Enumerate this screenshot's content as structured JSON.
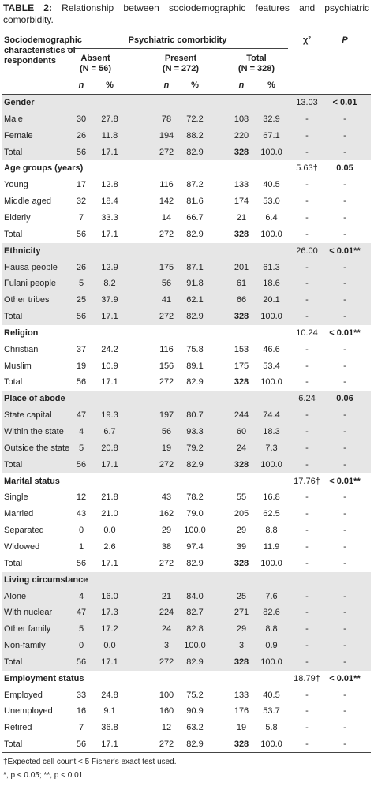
{
  "title": {
    "label": "TABLE 2:",
    "text": "Relationship between sociodemographic features and psychiatric comorbidity."
  },
  "header": {
    "characteristics": "Sociodemographic characteristics of respondents",
    "group": "Psychiatric comorbidity",
    "columns": [
      {
        "name": "Absent",
        "n": "(N = 56)"
      },
      {
        "name": "Present",
        "n": "(N = 272)"
      },
      {
        "name": "Total",
        "n": "(N = 328)"
      }
    ],
    "chi": "χ²",
    "p": "P",
    "sub": [
      "n",
      "%",
      "n",
      "%",
      "n",
      "%"
    ]
  },
  "sections": [
    {
      "title": "Gender",
      "chi": "13.03",
      "p": "< 0.01",
      "rows": [
        [
          "Male",
          "30",
          "27.8",
          "78",
          "72.2",
          "108",
          "32.9",
          "-",
          "-"
        ],
        [
          "Female",
          "26",
          "11.8",
          "194",
          "88.2",
          "220",
          "67.1",
          "-",
          "-"
        ],
        [
          "Total",
          "56",
          "17.1",
          "272",
          "82.9",
          "328",
          "100.0",
          "-",
          "-"
        ]
      ]
    },
    {
      "title": "Age groups (years)",
      "chi": "5.63†",
      "p": "0.05",
      "rows": [
        [
          "Young",
          "17",
          "12.8",
          "116",
          "87.2",
          "133",
          "40.5",
          "-",
          "-"
        ],
        [
          "Middle aged",
          "32",
          "18.4",
          "142",
          "81.6",
          "174",
          "53.0",
          "-",
          "-"
        ],
        [
          "Elderly",
          "7",
          "33.3",
          "14",
          "66.7",
          "21",
          "6.4",
          "-",
          "-"
        ],
        [
          "Total",
          "56",
          "17.1",
          "272",
          "82.9",
          "328",
          "100.0",
          "-",
          "-"
        ]
      ]
    },
    {
      "title": "Ethnicity",
      "chi": "26.00",
      "p": "< 0.01**",
      "rows": [
        [
          "Hausa people",
          "26",
          "12.9",
          "175",
          "87.1",
          "201",
          "61.3",
          "-",
          "-"
        ],
        [
          "Fulani people",
          "5",
          "8.2",
          "56",
          "91.8",
          "61",
          "18.6",
          "-",
          "-"
        ],
        [
          "Other tribes",
          "25",
          "37.9",
          "41",
          "62.1",
          "66",
          "20.1",
          "-",
          "-"
        ],
        [
          "Total",
          "56",
          "17.1",
          "272",
          "82.9",
          "328",
          "100.0",
          "-",
          "-"
        ]
      ]
    },
    {
      "title": "Religion",
      "chi": "10.24",
      "p": "< 0.01**",
      "rows": [
        [
          "Christian",
          "37",
          "24.2",
          "116",
          "75.8",
          "153",
          "46.6",
          "-",
          "-"
        ],
        [
          "Muslim",
          "19",
          "10.9",
          "156",
          "89.1",
          "175",
          "53.4",
          "-",
          "-"
        ],
        [
          "Total",
          "56",
          "17.1",
          "272",
          "82.9",
          "328",
          "100.0",
          "-",
          "-"
        ]
      ]
    },
    {
      "title": "Place of abode",
      "chi": "6.24",
      "p": "0.06",
      "rows": [
        [
          "State capital",
          "47",
          "19.3",
          "197",
          "80.7",
          "244",
          "74.4",
          "-",
          "-"
        ],
        [
          "Within the state",
          "4",
          "6.7",
          "56",
          "93.3",
          "60",
          "18.3",
          "-",
          "-"
        ],
        [
          "Outside the state",
          "5",
          "20.8",
          "19",
          "79.2",
          "24",
          "7.3",
          "-",
          "-"
        ],
        [
          "Total",
          "56",
          "17.1",
          "272",
          "82.9",
          "328",
          "100.0",
          "-",
          "-"
        ]
      ]
    },
    {
      "title": "Marital status",
      "chi": "17.76†",
      "p": "< 0.01**",
      "rows": [
        [
          "Single",
          "12",
          "21.8",
          "43",
          "78.2",
          "55",
          "16.8",
          "-",
          "-"
        ],
        [
          "Married",
          "43",
          "21.0",
          "162",
          "79.0",
          "205",
          "62.5",
          "-",
          "-"
        ],
        [
          "Separated",
          "0",
          "0.0",
          "29",
          "100.0",
          "29",
          "8.8",
          "-",
          "-"
        ],
        [
          "Widowed",
          "1",
          "2.6",
          "38",
          "97.4",
          "39",
          "11.9",
          "-",
          "-"
        ],
        [
          "Total",
          "56",
          "17.1",
          "272",
          "82.9",
          "328",
          "100.0",
          "-",
          "-"
        ]
      ]
    },
    {
      "title": "Living circumstance",
      "rows": [
        [
          "Alone",
          "4",
          "16.0",
          "21",
          "84.0",
          "25",
          "7.6",
          "-",
          "-"
        ],
        [
          "With nuclear",
          "47",
          "17.3",
          "224",
          "82.7",
          "271",
          "82.6",
          "-",
          "-"
        ],
        [
          "Other family",
          "5",
          "17.2",
          "24",
          "82.8",
          "29",
          "8.8",
          "-",
          "-"
        ],
        [
          "Non-family",
          "0",
          "0.0",
          "3",
          "100.0",
          "3",
          "0.9",
          "-",
          "-"
        ],
        [
          "Total",
          "56",
          "17.1",
          "272",
          "82.9",
          "328",
          "100.0",
          "-",
          "-"
        ]
      ]
    },
    {
      "title": "Employment status",
      "chi": "18.79†",
      "p": "< 0.01**",
      "rows": [
        [
          "Employed",
          "33",
          "24.8",
          "100",
          "75.2",
          "133",
          "40.5",
          "-",
          "-"
        ],
        [
          "Unemployed",
          "16",
          "9.1",
          "160",
          "90.9",
          "176",
          "53.7",
          "-",
          "-"
        ],
        [
          "Retired",
          "7",
          "36.8",
          "12",
          "63.2",
          "19",
          "5.8",
          "-",
          "-"
        ],
        [
          "Total",
          "56",
          "17.1",
          "272",
          "82.9",
          "328",
          "100.0",
          "-",
          "-"
        ]
      ]
    }
  ],
  "footnotes": [
    "†Expected cell count < 5 Fisher's exact test used.",
    "*, p < 0.05; **, p < 0.01."
  ]
}
